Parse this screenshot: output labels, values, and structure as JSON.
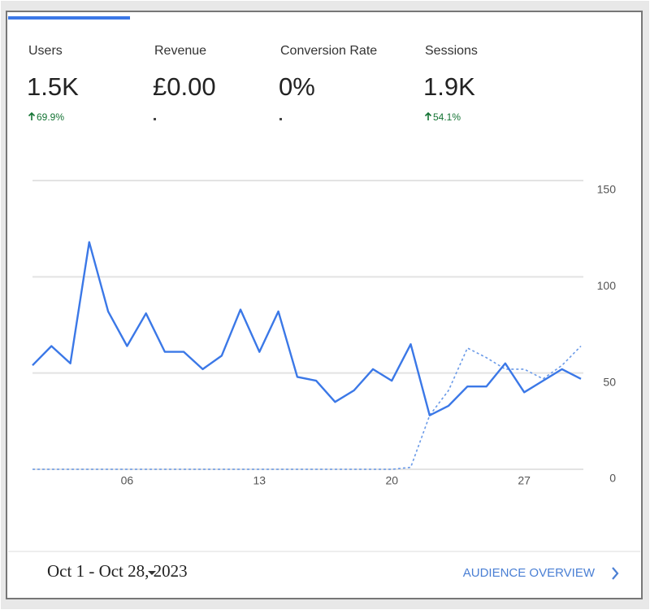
{
  "metrics": [
    {
      "label": "Users",
      "value": "1.5K",
      "change": "69.9%"
    },
    {
      "label": "Revenue",
      "value": "£0.00"
    },
    {
      "label": "Conversion Rate",
      "value": "0%"
    },
    {
      "label": "Sessions",
      "value": "1.9K",
      "change": "54.1%"
    }
  ],
  "chart_data": {
    "type": "line",
    "categories": [
      null,
      null,
      null,
      null,
      null,
      "06",
      null,
      null,
      null,
      null,
      null,
      null,
      "13",
      null,
      null,
      null,
      null,
      null,
      null,
      "20",
      null,
      null,
      null,
      null,
      null,
      null,
      "27",
      null,
      null,
      null
    ],
    "series": [
      {
        "color": "#3b78e7",
        "style": "solid",
        "values": [
          54,
          64,
          55,
          118,
          82,
          64,
          81,
          61,
          61,
          52,
          59,
          83,
          61,
          82,
          48,
          46,
          35,
          41,
          52,
          46,
          65,
          28,
          33,
          43,
          43,
          55,
          40,
          46,
          52,
          47
        ]
      },
      {
        "color": "#6a9ae8",
        "style": "dashed",
        "values": [
          0,
          0,
          0,
          0,
          0,
          0,
          0,
          0,
          0,
          0,
          0,
          0,
          0,
          0,
          0,
          0,
          0,
          0,
          0,
          0,
          1,
          28,
          41,
          63,
          58,
          52,
          52,
          47,
          54,
          64
        ]
      }
    ],
    "ylim": [
      0,
      150
    ],
    "yticks": [
      0,
      50,
      100,
      150
    ],
    "grid": true
  },
  "footer": {
    "date_range": "Oct 1 - Oct 28, 2023",
    "link": "AUDIENCE OVERVIEW"
  }
}
